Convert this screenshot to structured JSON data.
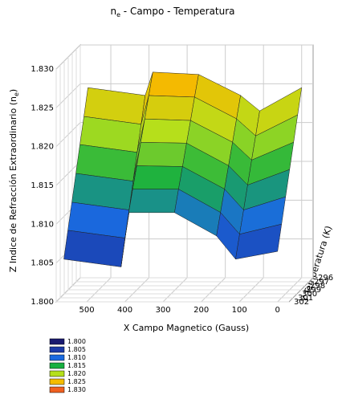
{
  "chart_data": {
    "type": "surface3d",
    "title": {
      "before": "n",
      "subscript": "e",
      "after": " - Campo - Temperatura"
    },
    "x_label": "X Campo Magnetico (Gauss)",
    "y_label": "Y Temperatura (K)",
    "z_label": {
      "before": "Z Indice de Refracción Extraordinario (n",
      "subscript": "e",
      "after": ")"
    },
    "x": [
      560,
      410,
      390,
      270,
      160,
      110,
      0
    ],
    "y": [
      296,
      297,
      298,
      299,
      300,
      301,
      302
    ],
    "z": [
      [
        1.8245,
        1.8235,
        1.8265,
        1.8262,
        1.8235,
        1.8215,
        1.8245
      ],
      [
        1.8213,
        1.8203,
        1.824,
        1.8238,
        1.821,
        1.8188,
        1.8215
      ],
      [
        1.8182,
        1.8172,
        1.8215,
        1.8213,
        1.8185,
        1.8162,
        1.8185
      ],
      [
        1.815,
        1.814,
        1.819,
        1.8189,
        1.816,
        1.8135,
        1.8155
      ],
      [
        1.8118,
        1.8108,
        1.8165,
        1.8164,
        1.8135,
        1.8108,
        1.8125
      ],
      [
        1.8087,
        1.8077,
        1.814,
        1.814,
        1.811,
        1.8082,
        1.8095
      ],
      [
        1.8055,
        1.8045,
        1.8115,
        1.8115,
        1.8085,
        1.8055,
        1.8065
      ]
    ],
    "xlim": [
      580,
      -30
    ],
    "ylim": [
      302,
      296
    ],
    "zlim": [
      1.8,
      1.83
    ],
    "xticks": [
      500,
      400,
      300,
      200,
      100,
      0
    ],
    "yticks": [
      296,
      297,
      298,
      299,
      300,
      301,
      302
    ],
    "zticks": [
      {
        "value": 1.8,
        "label": "1.800"
      },
      {
        "value": 1.805,
        "label": "1.805"
      },
      {
        "value": 1.81,
        "label": "1.810"
      },
      {
        "value": 1.815,
        "label": "1.815"
      },
      {
        "value": 1.82,
        "label": "1.820"
      },
      {
        "value": 1.825,
        "label": "1.825"
      },
      {
        "value": 1.83,
        "label": "1.830"
      }
    ],
    "colorscale": [
      {
        "value": 1.8,
        "label": "1.800",
        "color": "#1a1a70"
      },
      {
        "value": 1.805,
        "label": "1.805",
        "color": "#1c3aa8"
      },
      {
        "value": 1.81,
        "label": "1.810",
        "color": "#1a6ae0"
      },
      {
        "value": 1.815,
        "label": "1.815",
        "color": "#18b040"
      },
      {
        "value": 1.82,
        "label": "1.820",
        "color": "#b4e01c"
      },
      {
        "value": 1.825,
        "label": "1.825",
        "color": "#f4bc00"
      },
      {
        "value": 1.83,
        "label": "1.830",
        "color": "#f06020"
      }
    ],
    "grid": true
  }
}
